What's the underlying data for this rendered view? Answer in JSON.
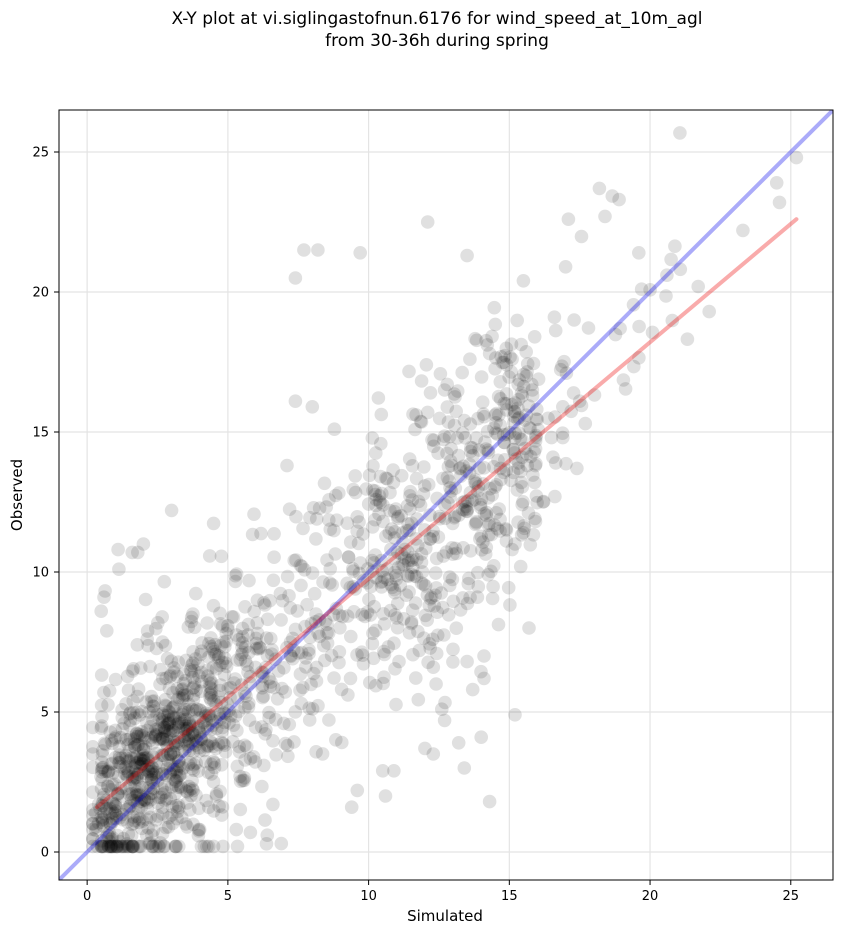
{
  "chart_data": {
    "type": "scatter",
    "title_line1": "X-Y plot at vi.siglingastofnun.6176 for wind_speed_at_10m_agl",
    "title_line2": "from 30-36h during spring",
    "xlabel": "Simulated",
    "ylabel": "Observed",
    "xlim": [
      -1,
      26.5
    ],
    "ylim": [
      -1,
      26.5
    ],
    "xticks": [
      0,
      5,
      10,
      15,
      20,
      25
    ],
    "yticks": [
      0,
      5,
      10,
      15,
      20,
      25
    ],
    "grid": true,
    "marker_color": "#000000",
    "marker_alpha": 0.12,
    "series": [
      {
        "line_type": "identity",
        "color": "#0000ee",
        "x": [
          -1,
          26.5
        ],
        "y": [
          -1,
          26.5
        ]
      },
      {
        "line_type": "fit",
        "color": "#ee0000",
        "x": [
          0.35,
          25.2
        ],
        "y": [
          1.6,
          22.6
        ]
      }
    ],
    "points": {
      "x": [
        25.2,
        24.6,
        24.5,
        18.2,
        18.9,
        18.4,
        17.1,
        12.1,
        7.7,
        8.2,
        7.4,
        9.7,
        13.5,
        15.5,
        19.6,
        20.6,
        19.7,
        22.1,
        23.3,
        16.6,
        17.0,
        17.3,
        17.7,
        17.5,
        17.4,
        16.2,
        16.9,
        15.9,
        14.9,
        15.1,
        14.3,
        13.6,
        12.2,
        7.4,
        8.0,
        7.1,
        12.1,
        12.7,
        16.9,
        15.8,
        15.6,
        15.9,
        15.2,
        14.9,
        15.1,
        15.7,
        15.5,
        16.5,
        2.0,
        3.0,
        1.1,
        1.6,
        1.8,
        0.6,
        0.5,
        0.7,
        12.0,
        14.3,
        15.2,
        14.0,
        13.4,
        13.2,
        12.7,
        12.3,
        5.8,
        6.9,
        10.5,
        9.6,
        4.0,
        3.5,
        5.3,
        6.4,
        9.4,
        6.6,
        10.9,
        10.6,
        12.4,
        11.8,
        12.3,
        13.5,
        14.1,
        14.1,
        2.3,
        2.2,
        12.6,
        13.7
      ],
      "y": [
        24.8,
        23.2,
        23.9,
        23.7,
        23.3,
        22.7,
        22.6,
        22.5,
        21.5,
        21.5,
        20.5,
        21.4,
        21.3,
        20.4,
        21.4,
        20.6,
        20.1,
        19.3,
        22.2,
        19.1,
        20.9,
        19.0,
        15.3,
        16.1,
        13.7,
        12.5,
        15.9,
        18.4,
        17.4,
        17.6,
        17.8,
        17.6,
        16.4,
        16.1,
        15.9,
        13.8,
        15.7,
        16.5,
        14.8,
        16.7,
        15.6,
        13.2,
        11.0,
        11.5,
        10.8,
        8.0,
        11.4,
        14.8,
        11.0,
        12.2,
        10.8,
        10.7,
        10.7,
        9.1,
        8.6,
        7.9,
        3.7,
        1.8,
        4.9,
        4.1,
        3.0,
        3.9,
        4.7,
        3.5,
        0.7,
        0.3,
        2.9,
        2.2,
        0.8,
        1.0,
        0.8,
        0.6,
        1.6,
        1.7,
        2.9,
        2.0,
        6.0,
        7.2,
        6.6,
        6.8,
        6.2,
        7.0,
        0.6,
        0.3,
        5.1,
        5.8
      ]
    }
  }
}
